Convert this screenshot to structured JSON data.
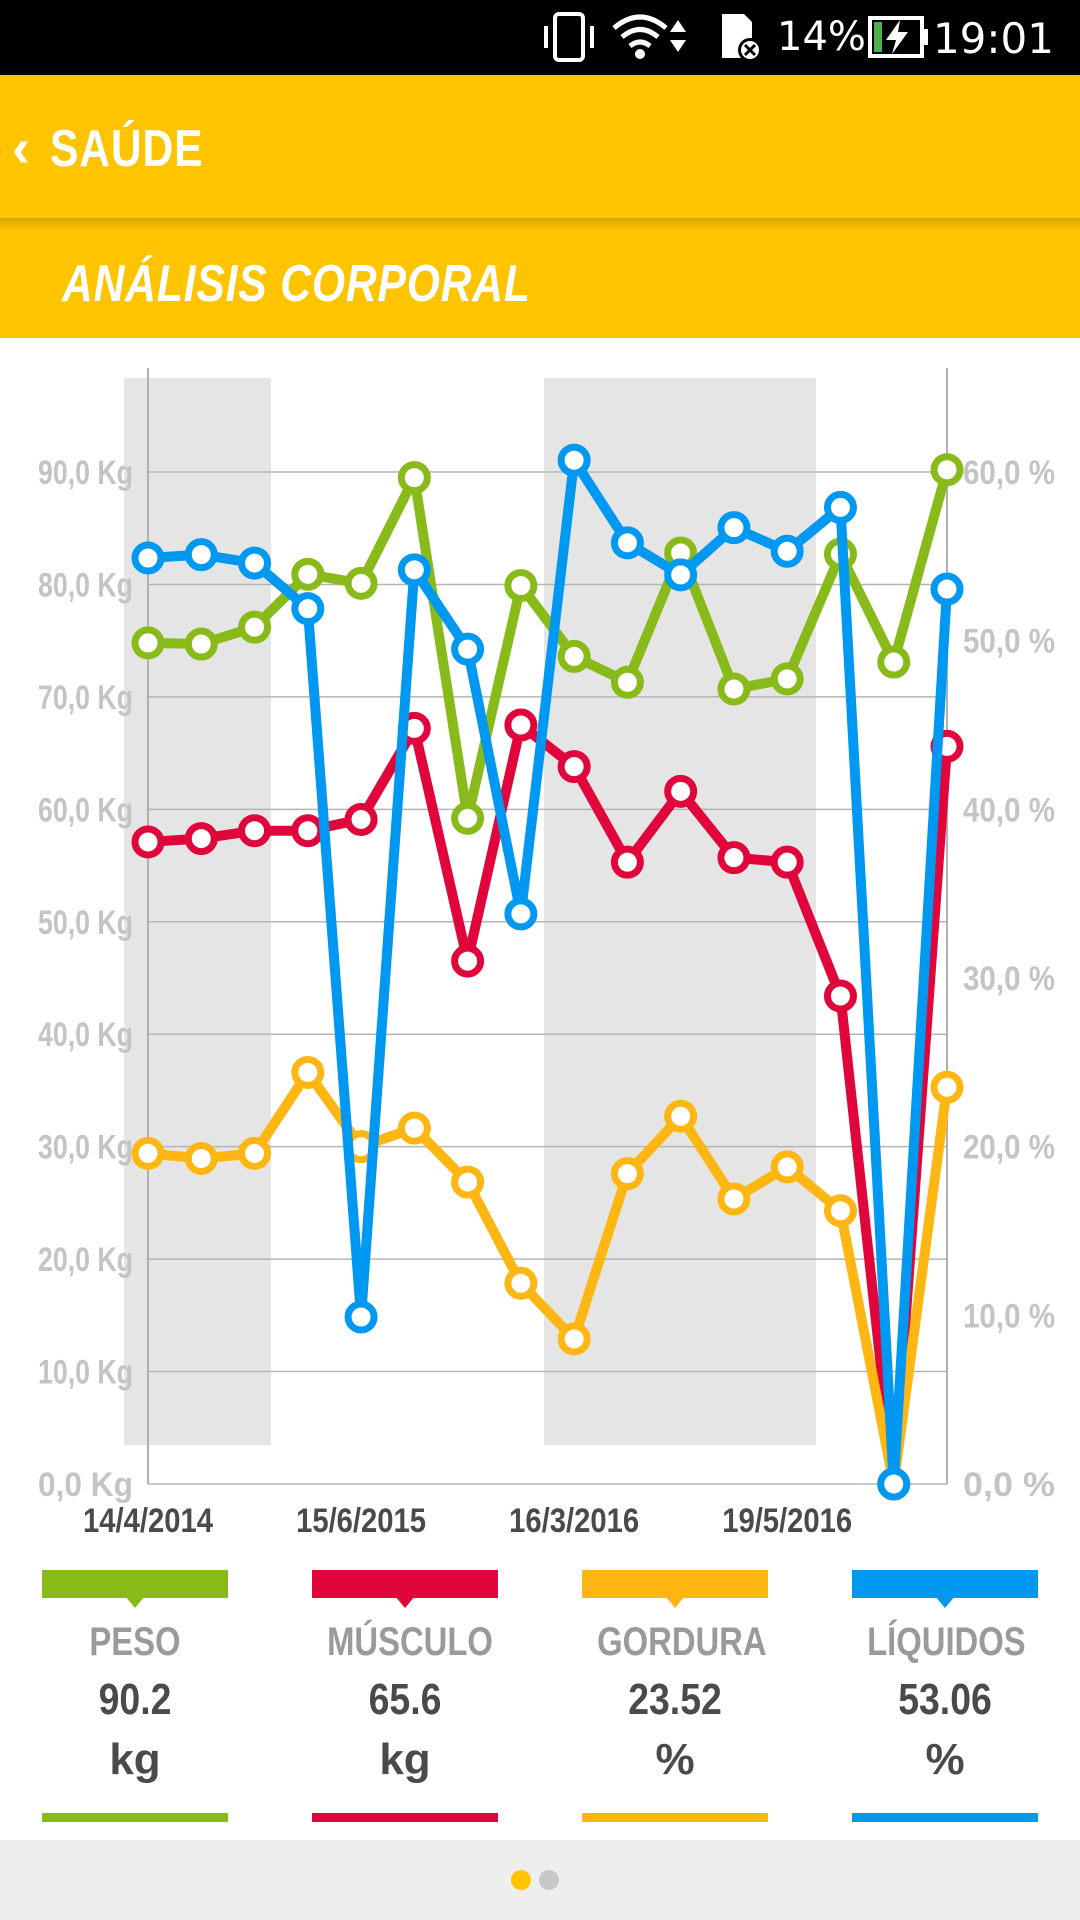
{
  "status_bar": {
    "battery_percent": "14%",
    "time": "19:01"
  },
  "app_bar": {
    "back_label": "SAÚDE"
  },
  "section": {
    "title": "ANÁLISIS CORPORAL"
  },
  "colors": {
    "accent": "#FEC400",
    "peso": "#88BB1A",
    "musculo": "#E0053A",
    "gordura": "#FEB612",
    "liquidos": "#0098F0"
  },
  "chart_data": {
    "type": "line",
    "x_tick_labels": [
      "14/4/2014",
      "15/6/2015",
      "16/3/2016",
      "19/5/2016"
    ],
    "y_left": {
      "label_unit": "Kg",
      "ticks": [
        "0,0 Kg",
        "10,0 Kg",
        "20,0 Kg",
        "30,0 Kg",
        "40,0 Kg",
        "50,0 Kg",
        "60,0 Kg",
        "70,0 Kg",
        "80,0 Kg",
        "90,0 Kg"
      ],
      "range": [
        0,
        90
      ]
    },
    "y_right": {
      "ticks": [
        "0,0 %",
        "10,0 %",
        "20,0 %",
        "30,0 %",
        "40,0 %",
        "50,0 %",
        "60,0 %"
      ],
      "range": [
        0,
        60
      ]
    },
    "grid": true,
    "series": [
      {
        "name": "PESO",
        "axis": "left",
        "values": [
          74.8,
          74.7,
          76.2,
          80.9,
          80.1,
          89.5,
          59.2,
          79.9,
          73.6,
          71.3,
          82.8,
          70.7,
          71.6,
          82.7,
          73.1,
          90.2
        ]
      },
      {
        "name": "MÚSCULO",
        "axis": "left",
        "values": [
          57.1,
          57.4,
          58.1,
          58.1,
          59.1,
          67.2,
          46.5,
          67.5,
          63.8,
          55.3,
          61.6,
          55.7,
          55.3,
          43.4,
          0,
          65.6
        ]
      },
      {
        "name": "GORDURA",
        "axis": "right",
        "values": [
          19.6,
          19.3,
          19.6,
          24.4,
          20.0,
          21.1,
          17.9,
          11.9,
          8.6,
          18.4,
          21.8,
          16.9,
          18.8,
          16.2,
          0,
          23.52
        ]
      },
      {
        "name": "LÍQUIDOS",
        "axis": "right",
        "values": [
          54.9,
          55.1,
          54.6,
          51.9,
          9.9,
          54.2,
          49.5,
          33.8,
          60.7,
          55.8,
          53.9,
          56.7,
          55.3,
          57.9,
          0,
          53.06
        ]
      }
    ]
  },
  "legend": [
    {
      "label": "PESO",
      "value": "90.2",
      "unit": "kg"
    },
    {
      "label": "MÚSCULO",
      "value": "65.6",
      "unit": "kg"
    },
    {
      "label": "GORDURA",
      "value": "23.52",
      "unit": "%"
    },
    {
      "label": "LÍQUIDOS",
      "value": "53.06",
      "unit": "%"
    }
  ],
  "pager": {
    "pages": 2,
    "current": 1
  }
}
